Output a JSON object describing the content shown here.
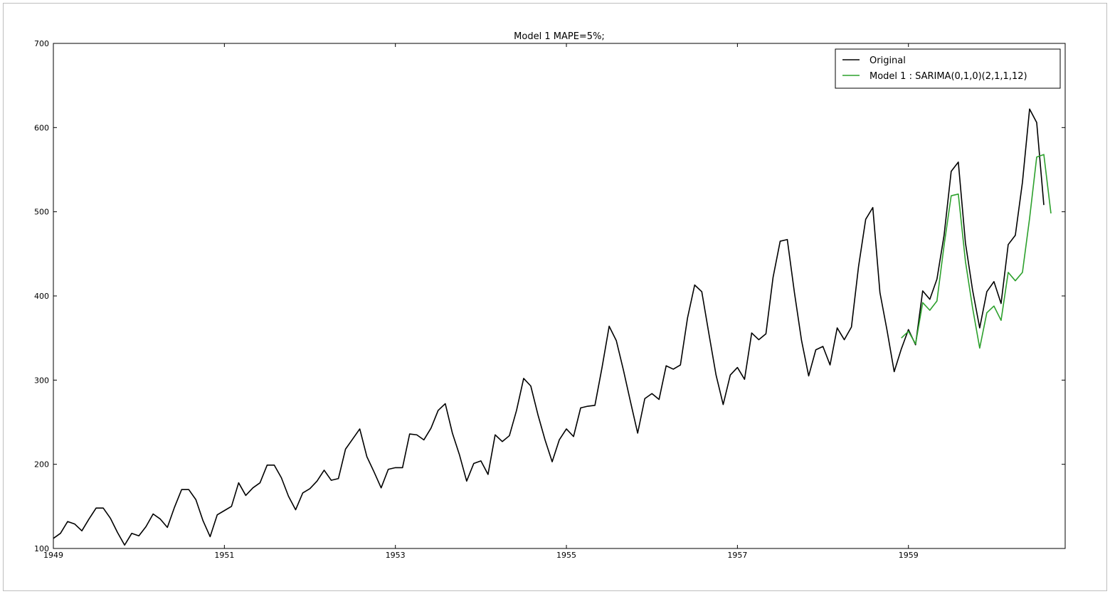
{
  "chart_data": {
    "type": "line",
    "title": "Model 1 MAPE=5%;",
    "xlabel": "",
    "ylabel": "",
    "xlim": [
      1949.0,
      1960.833
    ],
    "ylim": [
      100,
      700
    ],
    "grid": false,
    "legend_position": "top-right",
    "x_ticks": [
      1949,
      1951,
      1953,
      1955,
      1957,
      1959
    ],
    "x_tick_labels": [
      "1949",
      "1951",
      "1953",
      "1955",
      "1957",
      "1959"
    ],
    "y_ticks": [
      100,
      200,
      300,
      400,
      500,
      600,
      700
    ],
    "y_tick_labels": [
      "100",
      "200",
      "300",
      "400",
      "500",
      "600",
      "700"
    ],
    "series": [
      {
        "name": "Original",
        "color": "#000000",
        "start": [
          1949,
          1
        ],
        "frequency": "monthly",
        "values": [
          112,
          118,
          132,
          129,
          121,
          135,
          148,
          148,
          136,
          119,
          104,
          118,
          115,
          126,
          141,
          135,
          125,
          149,
          170,
          170,
          158,
          133,
          114,
          140,
          145,
          150,
          178,
          163,
          172,
          178,
          199,
          199,
          184,
          162,
          146,
          166,
          171,
          180,
          193,
          181,
          183,
          218,
          230,
          242,
          209,
          191,
          172,
          194,
          196,
          196,
          236,
          235,
          229,
          243,
          264,
          272,
          237,
          211,
          180,
          201,
          204,
          188,
          235,
          227,
          234,
          264,
          302,
          293,
          259,
          229,
          203,
          229,
          242,
          233,
          267,
          269,
          270,
          315,
          364,
          347,
          312,
          274,
          237,
          278,
          284,
          277,
          317,
          313,
          318,
          374,
          413,
          405,
          355,
          306,
          271,
          306,
          315,
          301,
          356,
          348,
          355,
          422,
          465,
          467,
          404,
          347,
          305,
          336,
          340,
          318,
          362,
          348,
          363,
          435,
          491,
          505,
          404,
          359,
          310,
          337,
          360,
          342,
          406,
          396,
          420,
          472,
          548,
          559,
          463,
          407,
          362,
          405,
          417,
          391,
          461,
          472,
          535,
          622,
          606,
          508
        ]
      },
      {
        "name": "Model 1 : SARIMA(0,1,0)(2,1,1,12)",
        "color": "#2ca02c",
        "start": [
          1958,
          12
        ],
        "frequency": "monthly",
        "values": [
          350,
          358,
          343,
          392,
          383,
          394,
          460,
          519,
          521,
          441,
          386,
          338,
          380,
          388,
          371,
          428,
          418,
          428,
          492,
          565,
          568,
          498
        ]
      }
    ]
  }
}
